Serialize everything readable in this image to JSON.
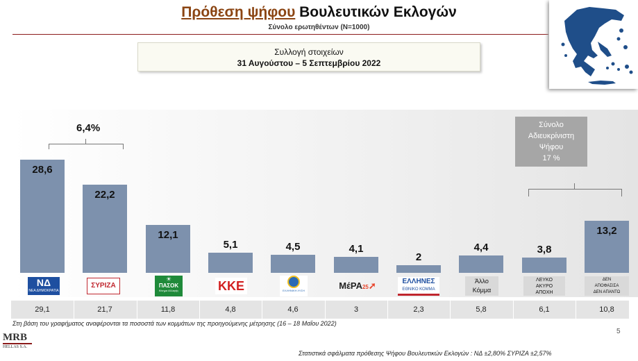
{
  "header": {
    "title_highlight": "Πρόθεση ψήφου",
    "title_rest": " Βουλευτικών Εκλογών",
    "subtitle": "Σύνολο ερωτηθέντων (N=1000)"
  },
  "infobox": {
    "line1": "Συλλογή στοιχείων",
    "line2": "31 Αυγούστου –  5 Σεπτεμβρίου 2022"
  },
  "chart_data": {
    "type": "bar",
    "categories": [
      "ΝΔ",
      "ΣΥΡΙΖΑ",
      "ΠΑΣΟΚ",
      "ΚΚΕ",
      "Ελληνική Λύση",
      "ΜέΡΑ25",
      "Έλληνες",
      "Άλλο Κόμμα",
      "Λευκό Άκυρο Αποχή",
      "Δεν αποφασίσα Δεν απαντώ"
    ],
    "values": [
      28.6,
      22.2,
      12.1,
      5.1,
      4.5,
      4.1,
      2,
      4.4,
      3.8,
      13.2
    ],
    "value_labels": [
      "28,6",
      "22,2",
      "12,1",
      "5,1",
      "4,5",
      "4,1",
      "2",
      "4,4",
      "3,8",
      "13,2"
    ],
    "previous_labels": [
      "29,1",
      "21,7",
      "11,8",
      "4,8",
      "4,6",
      "3",
      "2,3",
      "5,8",
      "6,1",
      "10,8"
    ],
    "ylim": [
      0,
      30
    ],
    "bar_color": "#7d91ad",
    "gap_annotation": "6,4%",
    "undecided_box": [
      "Σύνολο",
      "Αδιευκρίνιστη",
      "Ψήφου",
      "17 %"
    ]
  },
  "logos": {
    "nd": "ΝΔ",
    "nd_sub": "ΝΕΑ ΔΗΜΟΚΡΑΤΙΑ",
    "syriza": "ΣΥΡΙΖΑ",
    "pasok": "ΠΑΣΟΚ",
    "pasok_sub": "Κίνημα Αλλαγής",
    "kke": "ΚΚΕ",
    "elliniki": "ΕΛΛΗΝΙΚΗ ΛΥΣΗ",
    "mera": "ΜέΡΑ",
    "mera_num": "25",
    "ellines": "ΕΛΛΗΝΕΣ",
    "ellines_sub": "ΕΘΝΙΚΟ ΚΟΜΜΑ",
    "allo": [
      "Άλλο",
      "Κόμμα"
    ],
    "lefko": [
      "ΛΕΥΚΟ",
      "ΑΚΥΡΟ",
      "ΑΠΟΧΗ"
    ],
    "den": [
      "ΔΕΝ",
      "ΑΠΟΦΑΣΙΣΑ",
      "ΔΕΝ ΑΠΑΝΤΩ"
    ]
  },
  "footer": {
    "note": "Στη βάση του γραφήματος αναφέρονται τα ποσοστά των κομμάτων της προηγούμενης μέτρησης (16 – 18 Μαΐου 2022)",
    "page": "5",
    "company": "MRB",
    "company_sub": "HELLAS S.A.",
    "errors": "Στατιστικά σφάλματα πρόθεσης Ψήφου Βουλευτικών Εκλογών :   ΝΔ ±2,80% ΣΥΡΙΖΑ ±2,57%"
  },
  "colors": {
    "title_highlight": "#8b4513",
    "nd": "#1e4fa0",
    "syriza": "#c0262e",
    "pasok": "#1f8a3a",
    "kke": "#d21f1f",
    "map": "#1f4e89"
  }
}
